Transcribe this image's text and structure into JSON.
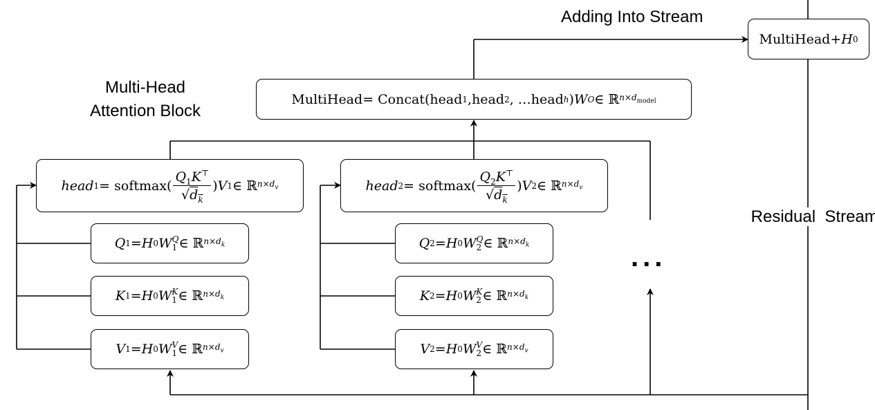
{
  "labels": {
    "adding_into_stream": "Adding Into Stream",
    "multi_head_line1": "Multi-Head",
    "multi_head_line2": "Attention Block",
    "residual_stream": "Residual  Stream",
    "ellipsis": "..."
  },
  "formulas": {
    "output": {
      "mh": "MultiHead",
      "plus": " + ",
      "h": "H",
      "sub": "0"
    },
    "multihead": {
      "lhs": "MultiHead",
      "eq": " = Concat(",
      "head": "head",
      "s1": "1",
      "s2": "2",
      "sh": "h",
      "comma": ", ",
      "ell": ", … ",
      "close": ")",
      "w": "W",
      "wsup": "O",
      "in": " ∈ ℝ",
      "dim": "n×d",
      "dimsub": "model"
    },
    "head1": {
      "head": "head",
      "sub": "1",
      "eq": " = softmax(",
      "q": "Q",
      "k": "K",
      "t": "⊤",
      "sqrt": "√",
      "d": "d",
      "dk": "k",
      "close": ")",
      "v": "V",
      "in": " ∈ ℝ",
      "dim": "n×d",
      "dimsub": "v"
    },
    "head2": {
      "head": "head",
      "sub": "2",
      "eq": " = softmax(",
      "q": "Q",
      "k": "K",
      "t": "⊤",
      "sqrt": "√",
      "d": "d",
      "dk": "k",
      "close": ")",
      "v": "V",
      "in": " ∈ ℝ",
      "dim": "n×d",
      "dimsub": "v"
    },
    "q1": {
      "var": "Q",
      "sub": "1",
      "eq": " = ",
      "h": "H",
      "h0": "0",
      "w": "W",
      "wsub": "1",
      "wsup": "Q",
      "in": " ∈ ℝ",
      "dim": "n×d",
      "dimsub": "k"
    },
    "k1": {
      "var": "K",
      "sub": "1",
      "eq": " = ",
      "h": "H",
      "h0": "0",
      "w": "W",
      "wsub": "1",
      "wsup": "K",
      "in": " ∈ ℝ",
      "dim": "n×d",
      "dimsub": "k"
    },
    "v1": {
      "var": "V",
      "sub": "1",
      "eq": " = ",
      "h": "H",
      "h0": "0",
      "w": "W",
      "wsub": "1",
      "wsup": "V",
      "in": " ∈ ℝ",
      "dim": "n×d",
      "dimsub": "v"
    },
    "q2": {
      "var": "Q",
      "sub": "2",
      "eq": " = ",
      "h": "H",
      "h0": "0",
      "w": "W",
      "wsub": "2",
      "wsup": "Q",
      "in": " ∈ ℝ",
      "dim": "n×d",
      "dimsub": "k"
    },
    "k2": {
      "var": "K",
      "sub": "2",
      "eq": " = ",
      "h": "H",
      "h0": "0",
      "w": "W",
      "wsub": "2",
      "wsup": "K",
      "in": " ∈ ℝ",
      "dim": "n×d",
      "dimsub": "k"
    },
    "v2": {
      "var": "V",
      "sub": "2",
      "eq": " = ",
      "h": "H",
      "h0": "0",
      "w": "W",
      "wsub": "2",
      "wsup": "V",
      "in": " ∈ ℝ",
      "dim": "n×d",
      "dimsub": "v"
    }
  }
}
